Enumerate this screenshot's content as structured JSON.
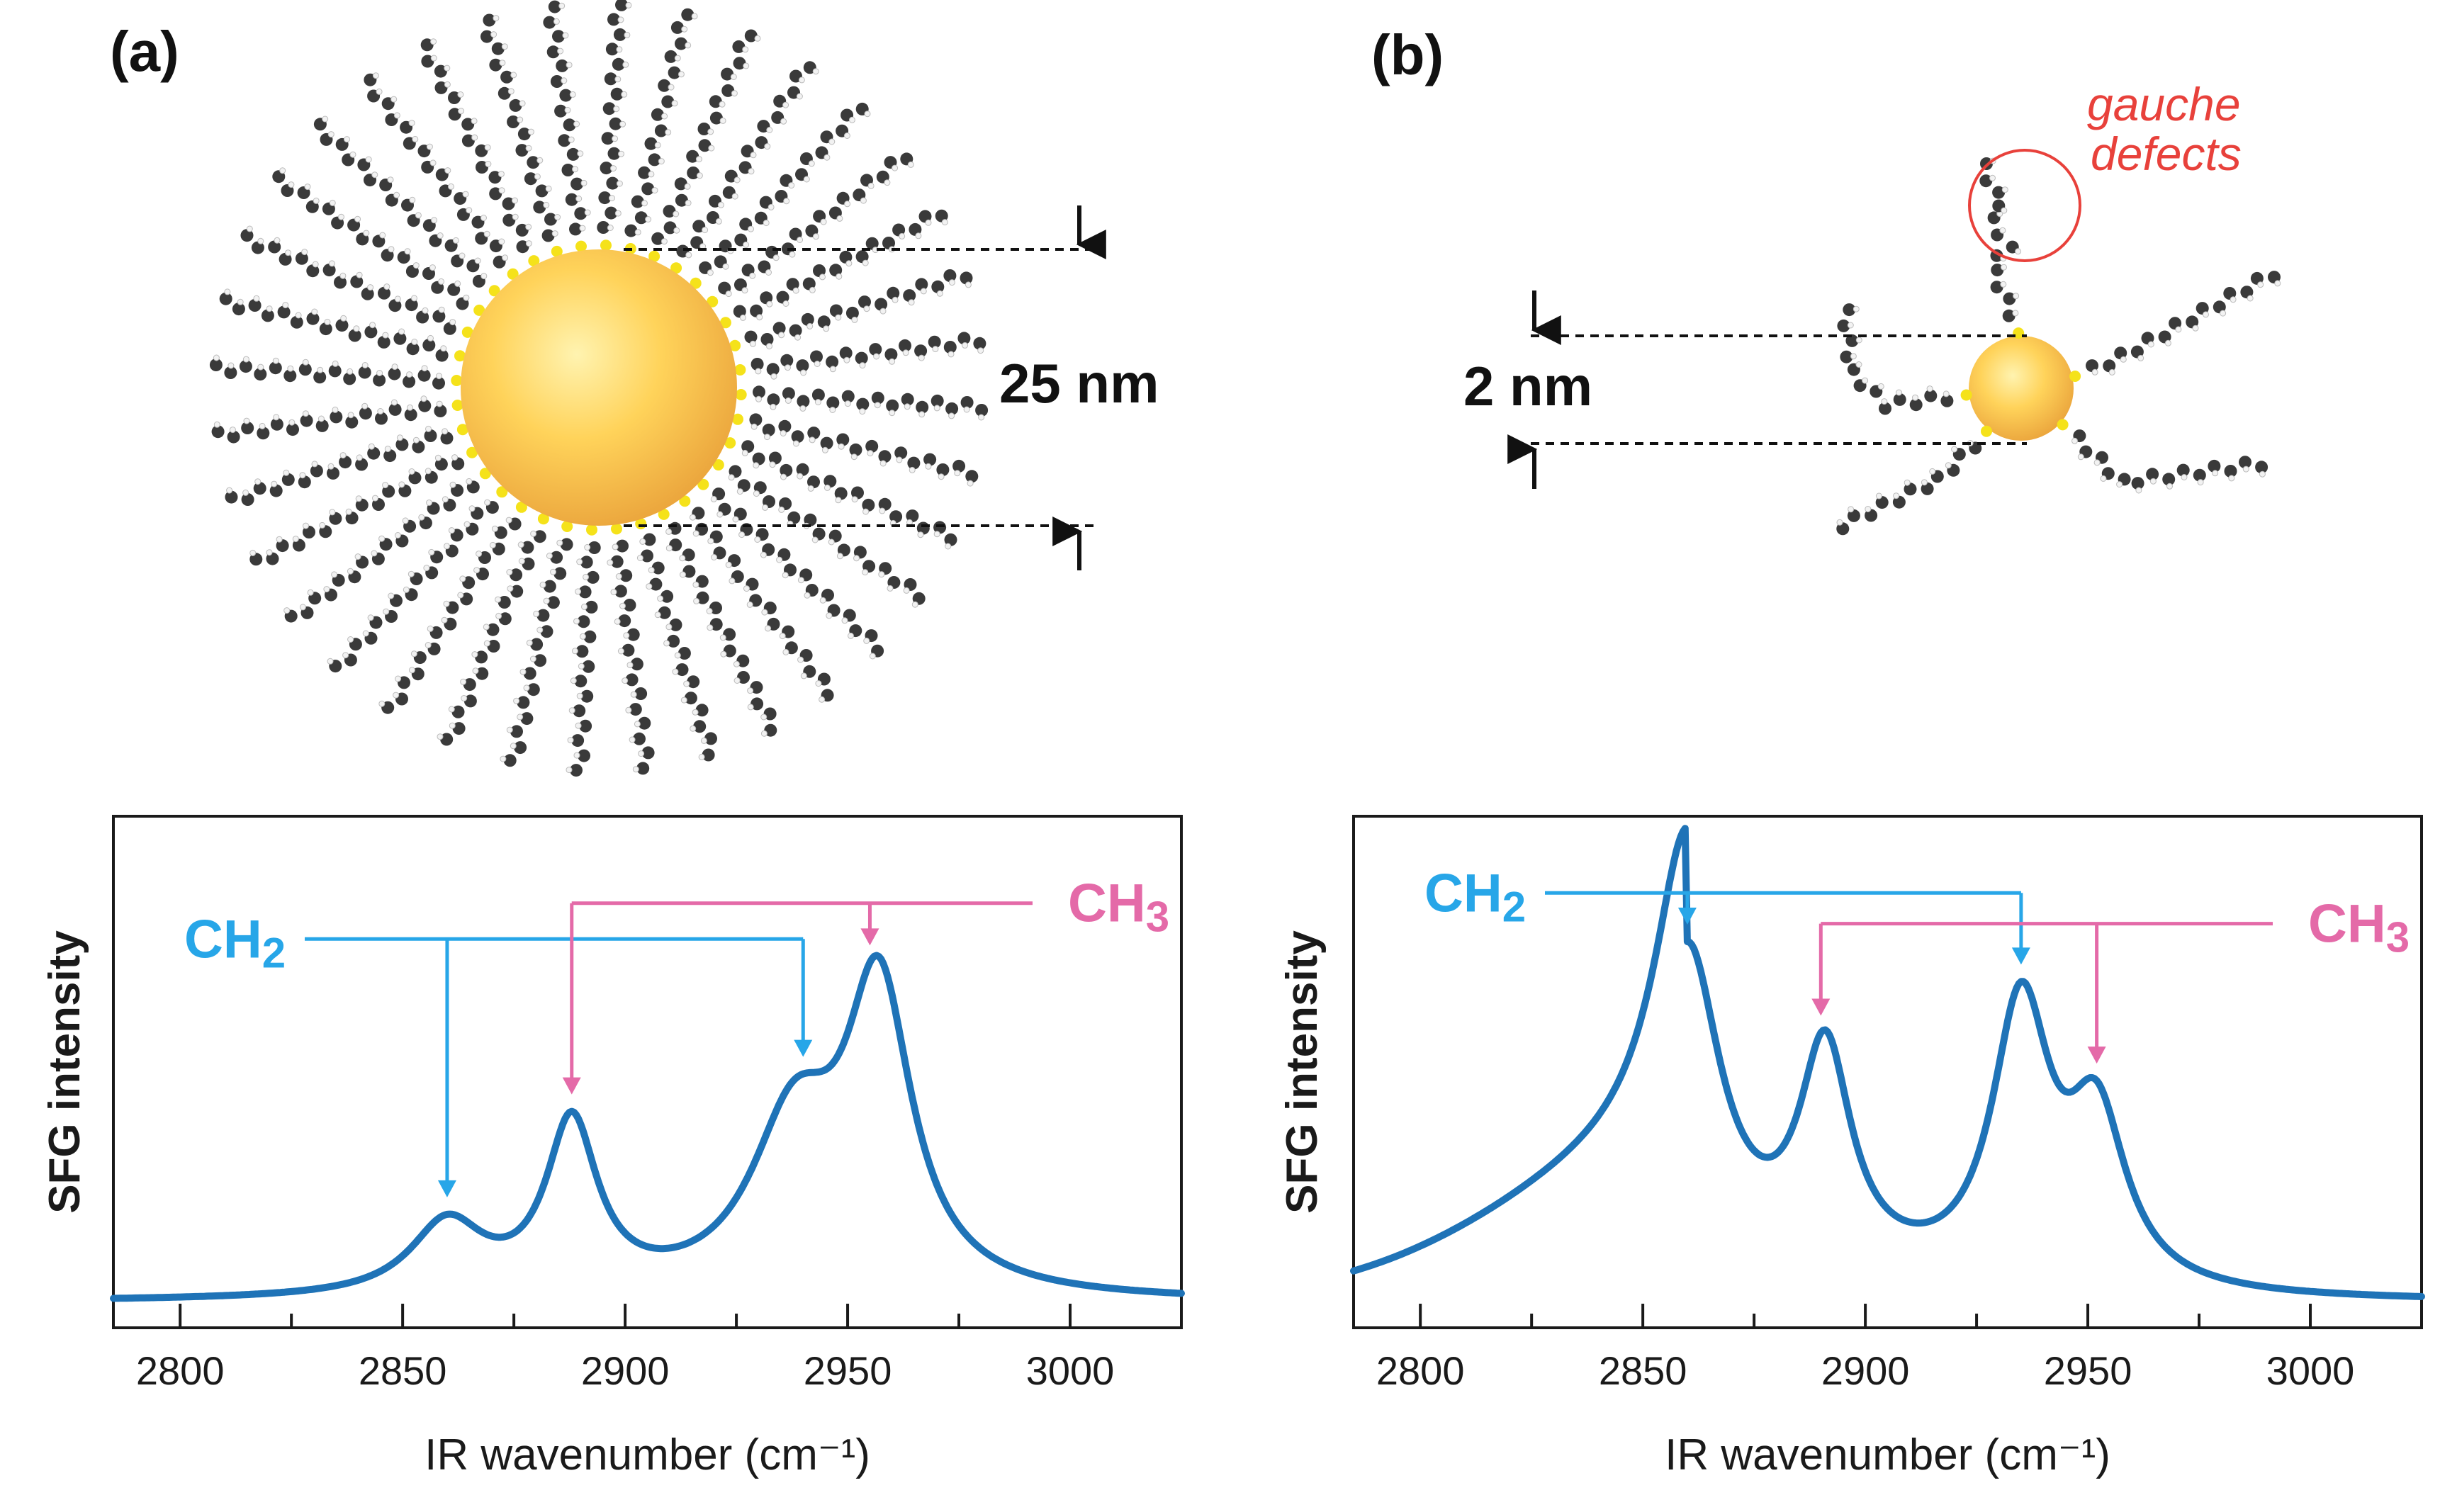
{
  "figure": {
    "panel_a_label": "(a)",
    "panel_b_label": "(b)",
    "colors": {
      "gold": "#f7c34c",
      "chain": "#3a3a3a",
      "ch2": "#27a6e8",
      "ch3": "#e46aa8",
      "curve": "#1f73b7",
      "gauche": "#e8413b",
      "thiol": "#f5e21a"
    },
    "panel_a_schematic": {
      "size_label": "25 nm",
      "description_icon": "large-gold-nanoparticle-with-ordered-ligands"
    },
    "panel_b_schematic": {
      "size_label": "2 nm",
      "gauche_label_line1": "gauche",
      "gauche_label_line2": "defects"
    }
  },
  "chart_data": [
    {
      "type": "line",
      "panel": "a",
      "title": "",
      "xlabel": "IR wavenumber (cm⁻¹)",
      "ylabel": "SFG intensity",
      "xlim": [
        2785,
        3025
      ],
      "ylim": [
        0,
        1
      ],
      "xticks": [
        2800,
        2850,
        2900,
        2950,
        3000
      ],
      "xtick_labels": [
        "2800",
        "2850",
        "2900",
        "2950",
        "3000"
      ],
      "minor_xticks": [
        2825,
        2875,
        2925,
        2975
      ],
      "series": [
        {
          "name": "SFG spectrum (25 nm)",
          "baseline": 0.05,
          "peaks": [
            {
              "center": 2860,
              "amplitude": 0.14,
              "width": 10
            },
            {
              "center": 2888,
              "amplitude": 0.33,
              "width": 7
            },
            {
              "center": 2938,
              "amplitude": 0.32,
              "width": 12
            },
            {
              "center": 2957,
              "amplitude": 0.58,
              "width": 9
            }
          ]
        }
      ],
      "annotations": [
        {
          "group": "CH2",
          "label_main": "CH",
          "label_sub": "2",
          "color_key": "ch2",
          "targets": [
            2860,
            2940
          ]
        },
        {
          "group": "CH3",
          "label_main": "CH",
          "label_sub": "3",
          "color_key": "ch3",
          "targets": [
            2888,
            2955
          ]
        }
      ]
    },
    {
      "type": "line",
      "panel": "b",
      "title": "",
      "xlabel": "IR wavenumber (cm⁻¹)",
      "ylabel": "SFG intensity",
      "xlim": [
        2785,
        3025
      ],
      "ylim": [
        0,
        1
      ],
      "xticks": [
        2800,
        2850,
        2900,
        2950,
        3000
      ],
      "xtick_labels": [
        "2800",
        "2850",
        "2900",
        "2950",
        "3000"
      ],
      "minor_xticks": [
        2825,
        2875,
        2925,
        2975
      ],
      "series": [
        {
          "name": "SFG spectrum (2 nm)",
          "baseline": 0.05,
          "peaks": [
            {
              "center": 2860,
              "amplitude": 0.62,
              "width": 9
            },
            {
              "center": 2891,
              "amplitude": 0.42,
              "width": 7
            },
            {
              "center": 2935,
              "amplitude": 0.54,
              "width": 8
            },
            {
              "center": 2952,
              "amplitude": 0.32,
              "width": 8
            }
          ],
          "broad_wing": {
            "center": 2860,
            "amplitude": 0.28,
            "width": 40
          }
        }
      ],
      "annotations": [
        {
          "group": "CH2",
          "label_main": "CH",
          "label_sub": "2",
          "color_key": "ch2",
          "targets": [
            2860,
            2935
          ]
        },
        {
          "group": "CH3",
          "label_main": "CH",
          "label_sub": "3",
          "color_key": "ch3",
          "targets": [
            2890,
            2952
          ]
        }
      ]
    }
  ]
}
